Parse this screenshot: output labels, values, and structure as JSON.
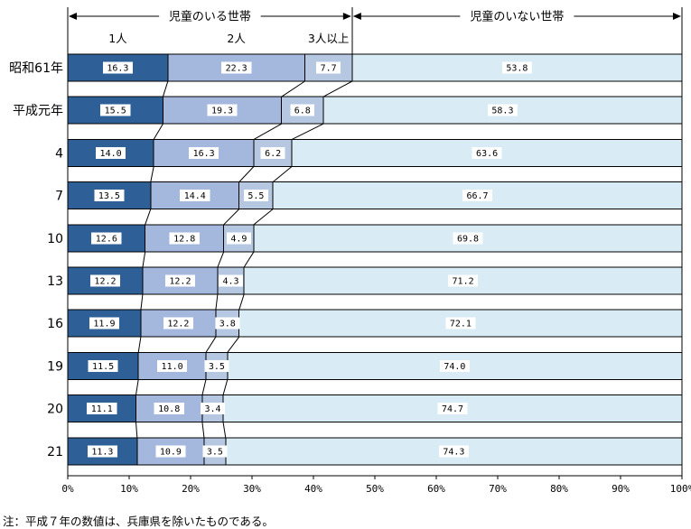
{
  "chart_data": {
    "type": "bar",
    "orientation": "horizontal-stacked",
    "title": "",
    "xlabel": "",
    "ylabel": "",
    "xlim": [
      0,
      100
    ],
    "x_ticks": [
      "0%",
      "10%",
      "20%",
      "30%",
      "40%",
      "50%",
      "60%",
      "70%",
      "80%",
      "90%",
      "100%"
    ],
    "categories": [
      "昭和61年",
      "平成元年",
      "4",
      "7",
      "10",
      "13",
      "16",
      "19",
      "20",
      "21"
    ],
    "series": [
      {
        "name": "1人",
        "color": "#2e5f96",
        "values": [
          16.3,
          15.5,
          14.0,
          13.5,
          12.6,
          12.2,
          11.9,
          11.5,
          11.1,
          11.3
        ]
      },
      {
        "name": "2人",
        "color": "#a3b8dc",
        "values": [
          22.3,
          19.3,
          16.3,
          14.4,
          12.8,
          12.2,
          12.2,
          11.0,
          10.8,
          10.9
        ]
      },
      {
        "name": "3人以上",
        "color": "#b6c7e2",
        "values": [
          7.7,
          6.8,
          6.2,
          5.5,
          4.9,
          4.3,
          3.8,
          3.5,
          3.4,
          3.5
        ]
      },
      {
        "name": "児童のいない世帯",
        "color": "#d9ecf5",
        "values": [
          53.8,
          58.3,
          63.6,
          66.7,
          69.8,
          71.2,
          72.1,
          74.0,
          74.7,
          74.3
        ]
      }
    ],
    "group_labels": [
      {
        "label": "児童のいる世帯",
        "from": 0,
        "to": 46.3
      },
      {
        "label": "児童のいない世帯",
        "from": 46.3,
        "to": 100
      }
    ],
    "colors": {
      "bar_border": "#000000",
      "value_label_bg": "#ffffff",
      "text": "#000000"
    },
    "legend_position": "top-inline",
    "grid": false
  },
  "note": "注：平成７年の数値は、兵庫県を除いたものである。"
}
